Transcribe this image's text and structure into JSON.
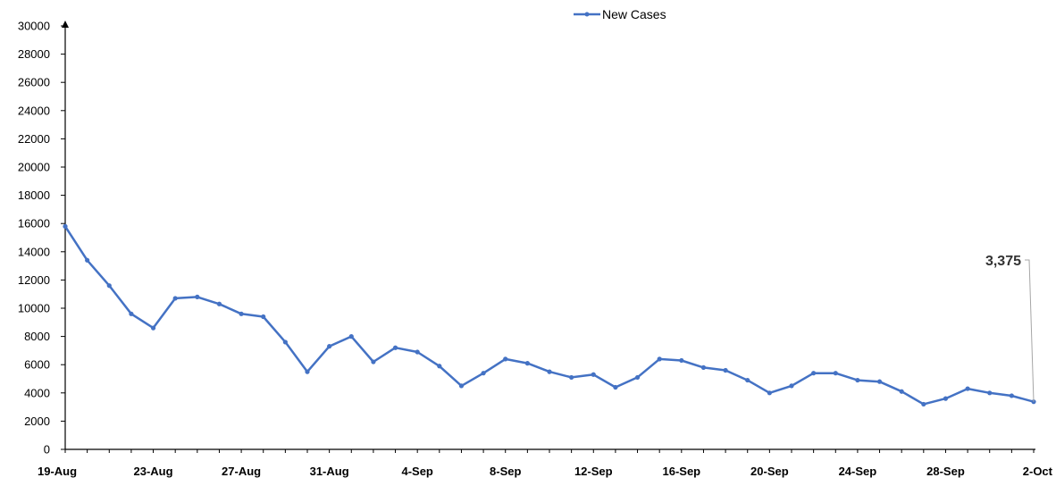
{
  "chart_data": {
    "type": "line",
    "title": "",
    "xlabel": "",
    "ylabel": "",
    "ylim": [
      0,
      30000
    ],
    "y_ticks": [
      "0",
      "2000",
      "4000",
      "6000",
      "8000",
      "10000",
      "12000",
      "14000",
      "16000",
      "18000",
      "20000",
      "22000",
      "24000",
      "26000",
      "28000",
      "30000"
    ],
    "x_tick_labels": [
      "19-Aug",
      "23-Aug",
      "27-Aug",
      "31-Aug",
      "4-Sep",
      "8-Sep",
      "12-Sep",
      "16-Sep",
      "20-Sep",
      "24-Sep",
      "28-Sep",
      "2-Oct"
    ],
    "grid": false,
    "legend": {
      "position": "top-center",
      "entries": [
        "New Cases"
      ]
    },
    "series": [
      {
        "name": "New Cases",
        "color": "#4472C4",
        "x": [
          "19-Aug",
          "20-Aug",
          "21-Aug",
          "22-Aug",
          "23-Aug",
          "24-Aug",
          "25-Aug",
          "26-Aug",
          "27-Aug",
          "28-Aug",
          "29-Aug",
          "30-Aug",
          "31-Aug",
          "1-Sep",
          "2-Sep",
          "3-Sep",
          "4-Sep",
          "5-Sep",
          "6-Sep",
          "7-Sep",
          "8-Sep",
          "9-Sep",
          "10-Sep",
          "11-Sep",
          "12-Sep",
          "13-Sep",
          "14-Sep",
          "15-Sep",
          "16-Sep",
          "17-Sep",
          "18-Sep",
          "19-Sep",
          "20-Sep",
          "21-Sep",
          "22-Sep",
          "23-Sep",
          "24-Sep",
          "25-Sep",
          "26-Sep",
          "27-Sep",
          "28-Sep",
          "29-Sep",
          "30-Sep",
          "1-Oct",
          "2-Oct"
        ],
        "values": [
          15800,
          13400,
          11600,
          9600,
          8600,
          10700,
          10800,
          10300,
          9600,
          9400,
          7600,
          5500,
          7300,
          8000,
          6200,
          7200,
          6900,
          5900,
          4500,
          5400,
          6400,
          6100,
          5500,
          5100,
          5300,
          4400,
          5100,
          6400,
          6300,
          5800,
          5600,
          4900,
          4000,
          4500,
          5400,
          5400,
          4900,
          4800,
          4100,
          3200,
          3600,
          4300,
          4000,
          3800,
          3375
        ]
      }
    ],
    "annotations": [
      {
        "text": "3,375",
        "x": "2-Oct",
        "y": 3375
      }
    ]
  }
}
